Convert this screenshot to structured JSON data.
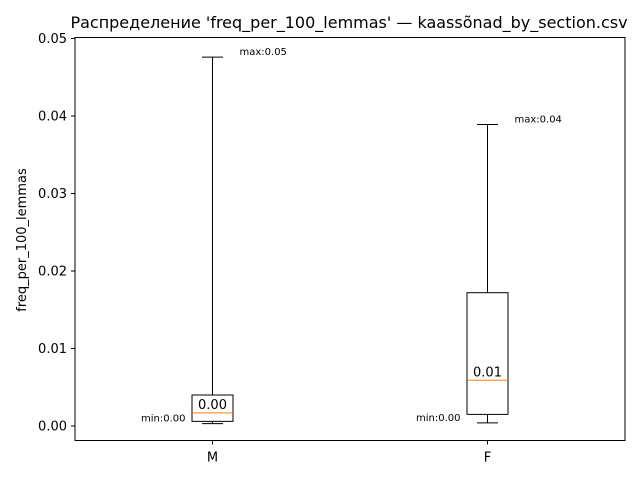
{
  "chart_data": {
    "type": "box",
    "title": "Распределение 'freq_per_100_lemmas' — kaassõnad_by_section.csv",
    "xlabel": "",
    "ylabel": "freq_per_100_lemmas",
    "ylim": [
      -0.002,
      0.05
    ],
    "yticks": [
      0.0,
      0.01,
      0.02,
      0.03,
      0.04,
      0.05
    ],
    "ytick_labels": [
      "0.00",
      "0.01",
      "0.02",
      "0.03",
      "0.04",
      "0.05"
    ],
    "grid": false,
    "categories": [
      "M",
      "F"
    ],
    "boxes": [
      {
        "category": "M",
        "whisker_low": 0.0003,
        "q1": 0.0006,
        "median": 0.0017,
        "q3": 0.004,
        "whisker_high": 0.0476,
        "min_label": "min:0.00",
        "max_label": "max:0.05",
        "median_label": "0.00"
      },
      {
        "category": "F",
        "whisker_low": 0.0004,
        "q1": 0.0015,
        "median": 0.0059,
        "q3": 0.0172,
        "whisker_high": 0.0389,
        "min_label": "min:0.00",
        "max_label": "max:0.04",
        "median_label": "0.01"
      }
    ],
    "colors": {
      "box": "#000000",
      "median": "#ff7f0e"
    }
  }
}
